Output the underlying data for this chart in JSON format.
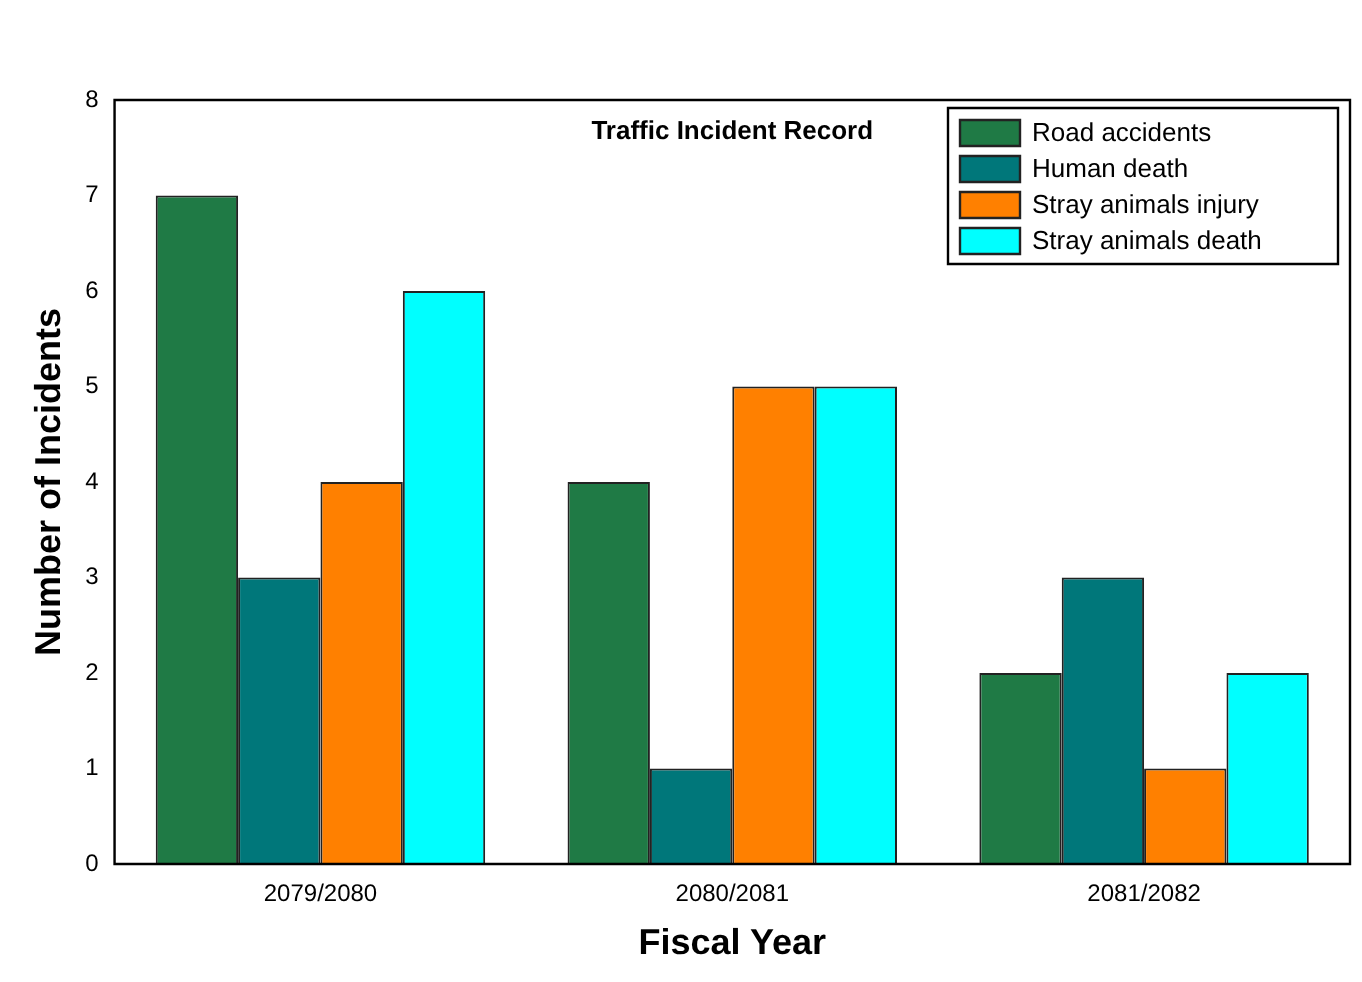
{
  "chart_data": {
    "type": "bar",
    "title": "Traffic Incident Record",
    "xlabel": "Fiscal Year",
    "ylabel": "Number of Incidents",
    "categories": [
      "2079/2080",
      "2080/2081",
      "2081/2082"
    ],
    "series": [
      {
        "name": "Road accidents",
        "color": "#1f7a45",
        "values": [
          7,
          4,
          2
        ]
      },
      {
        "name": "Human death",
        "color": "#00777a",
        "values": [
          3,
          1,
          3
        ]
      },
      {
        "name": "Stray animals injury",
        "color": "#ff8000",
        "values": [
          4,
          5,
          1
        ]
      },
      {
        "name": "Stray animals death",
        "color": "#00ffff",
        "values": [
          6,
          5,
          2
        ]
      }
    ],
    "ylim": [
      0,
      8
    ],
    "yticks": [
      0,
      1,
      2,
      3,
      4,
      5,
      6,
      7,
      8
    ],
    "grid": false,
    "legend": "top right"
  }
}
